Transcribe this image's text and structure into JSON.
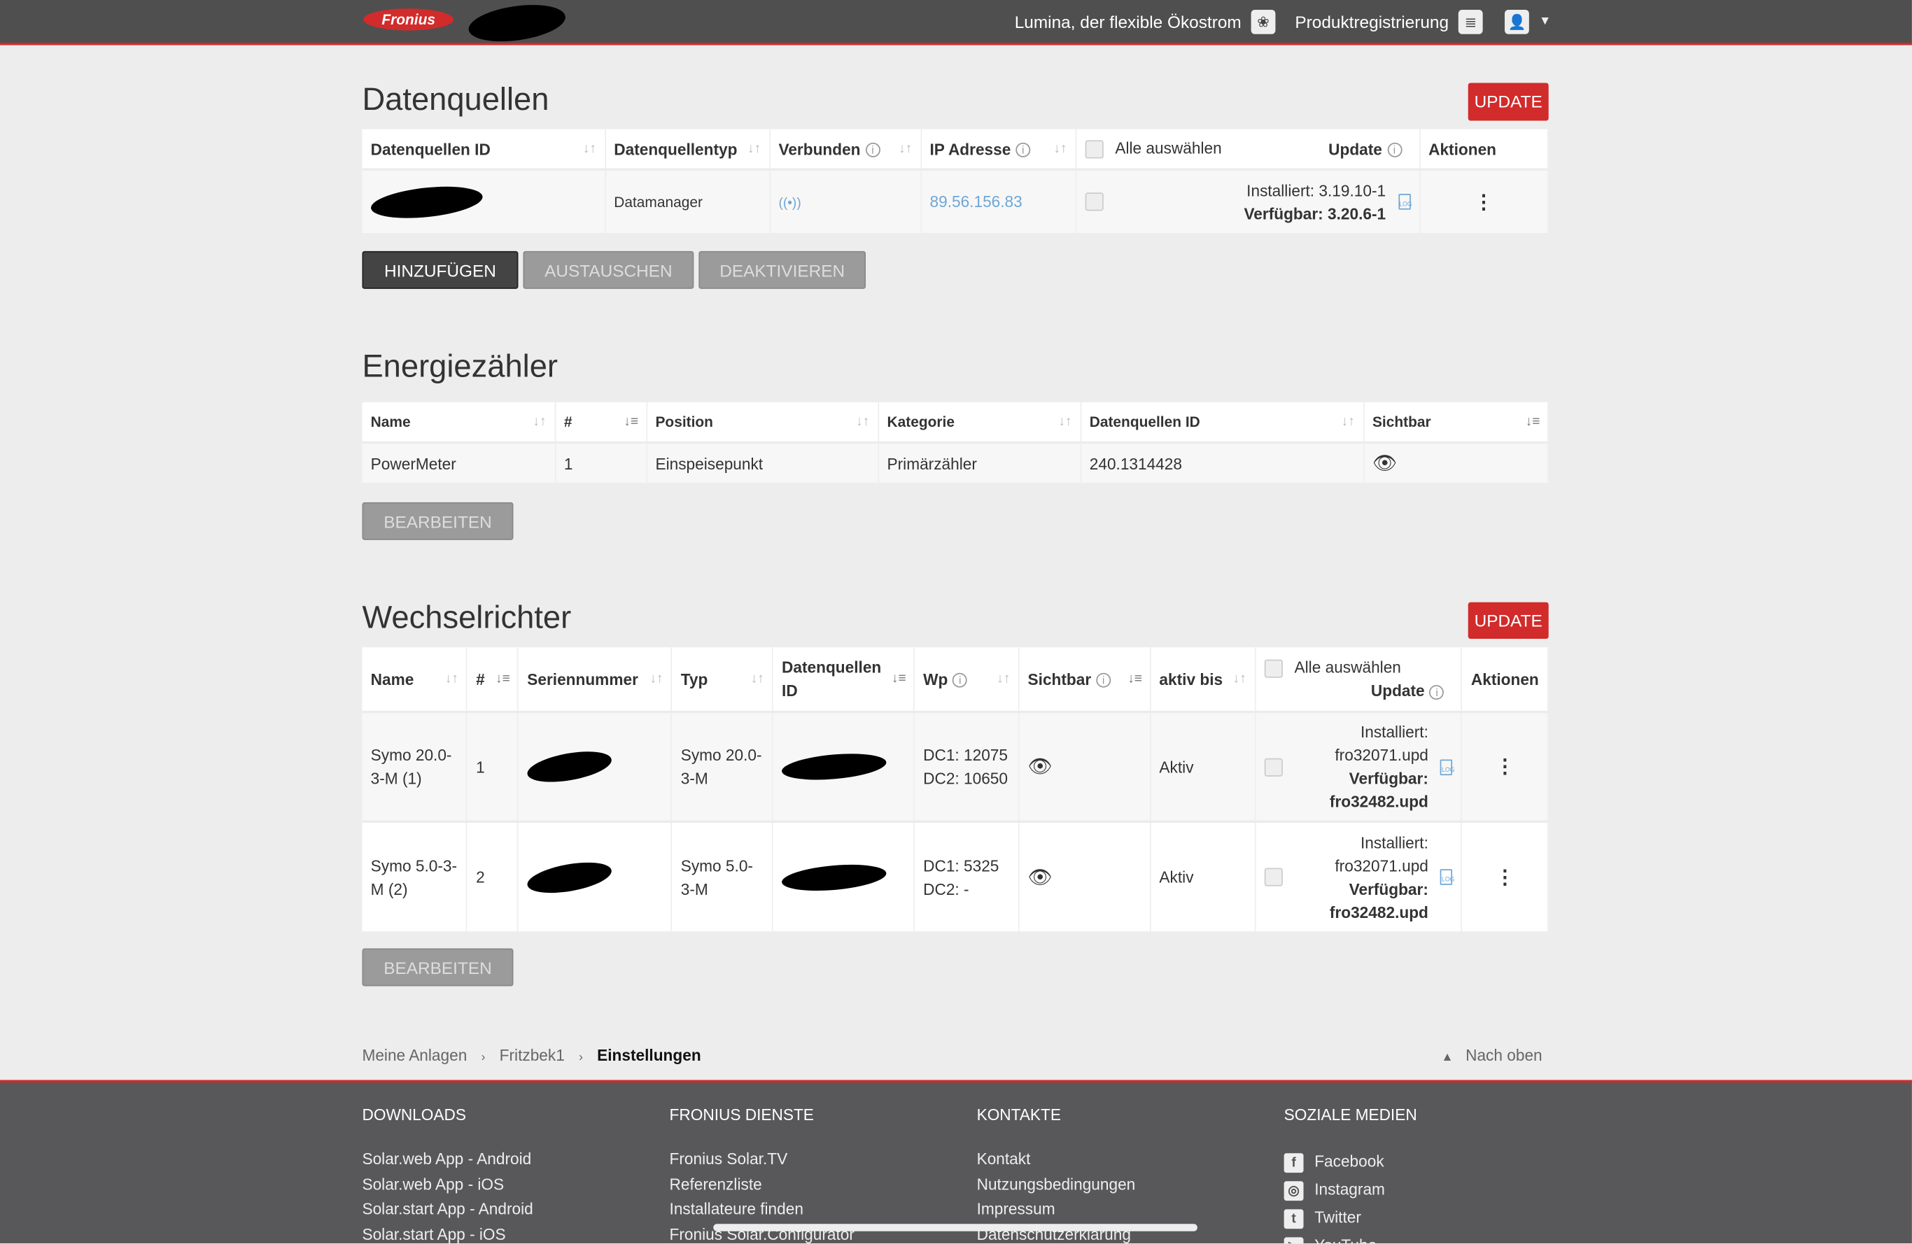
{
  "header": {
    "brand": "Fronius",
    "lumina": "Lumina, der flexible Ökostrom",
    "registration": "Produktregistrierung"
  },
  "datasources": {
    "title": "Datenquellen",
    "update": "UPDATE",
    "columns": [
      "Datenquellen ID",
      "Datenquellentyp",
      "Verbunden",
      "IP Adresse",
      "Alle auswählen",
      "Update",
      "Aktionen"
    ],
    "row": {
      "type": "Datamanager",
      "ip": "89.56.156.83",
      "installed": "Installiert: 3.19.10-1",
      "available": "Verfügbar: 3.20.6-1"
    },
    "buttons": {
      "add": "HINZUFÜGEN",
      "replace": "AUSTAUSCHEN",
      "deactivate": "DEAKTIVIEREN"
    }
  },
  "meters": {
    "title": "Energiezähler",
    "columns": [
      "Name",
      "#",
      "Position",
      "Kategorie",
      "Datenquellen ID",
      "Sichtbar"
    ],
    "rows": [
      {
        "name": "PowerMeter",
        "num": "1",
        "position": "Einspeisepunkt",
        "category": "Primärzähler",
        "source_id": "240.1314428"
      }
    ],
    "edit": "BEARBEITEN"
  },
  "inverters": {
    "title": "Wechselrichter",
    "update": "UPDATE",
    "columns": [
      "Name",
      "#",
      "Seriennummer",
      "Typ",
      "Datenquellen ID",
      "Wp",
      "Sichtbar",
      "aktiv bis",
      "Alle auswählen",
      "Update",
      "Aktionen"
    ],
    "rows": [
      {
        "name": "Symo 20.0-3-M (1)",
        "num": "1",
        "type": "Symo 20.0-3-M",
        "dc1": "DC1: 12075",
        "dc2": "DC2: 10650",
        "active": "Aktiv",
        "installed_label": "Installiert:",
        "installed": "fro32071.upd",
        "available_label": "Verfügbar:",
        "available": "fro32482.upd"
      },
      {
        "name": "Symo 5.0-3-M (2)",
        "num": "2",
        "type": "Symo 5.0-3-M",
        "dc1": "DC1: 5325",
        "dc2": "DC2: -",
        "active": "Aktiv",
        "installed_label": "Installiert:",
        "installed": "fro32071.upd",
        "available_label": "Verfügbar:",
        "available": "fro32482.upd"
      }
    ],
    "edit": "BEARBEITEN"
  },
  "breadcrumb": [
    "Meine Anlagen",
    "Fritzbek1",
    "Einstellungen"
  ],
  "back_to_top": "Nach oben",
  "footer": {
    "downloads": {
      "title": "DOWNLOADS",
      "links": [
        "Solar.web App - Android",
        "Solar.web App - iOS",
        "Solar.start App - Android",
        "Solar.start App - iOS"
      ]
    },
    "services": {
      "title": "FRONIUS DIENSTE",
      "links": [
        "Fronius Solar.TV",
        "Referenzliste",
        "Installateure finden",
        "Fronius Solar.Configurator"
      ]
    },
    "contacts": {
      "title": "KONTAKTE",
      "links": [
        "Kontakt",
        "Nutzungsbedingungen",
        "Impressum",
        "Datenschutzerklärung"
      ]
    },
    "social": {
      "title": "SOZIALE MEDIEN",
      "links": [
        "Facebook",
        "Instagram",
        "Twitter",
        "YouTube"
      ]
    }
  }
}
